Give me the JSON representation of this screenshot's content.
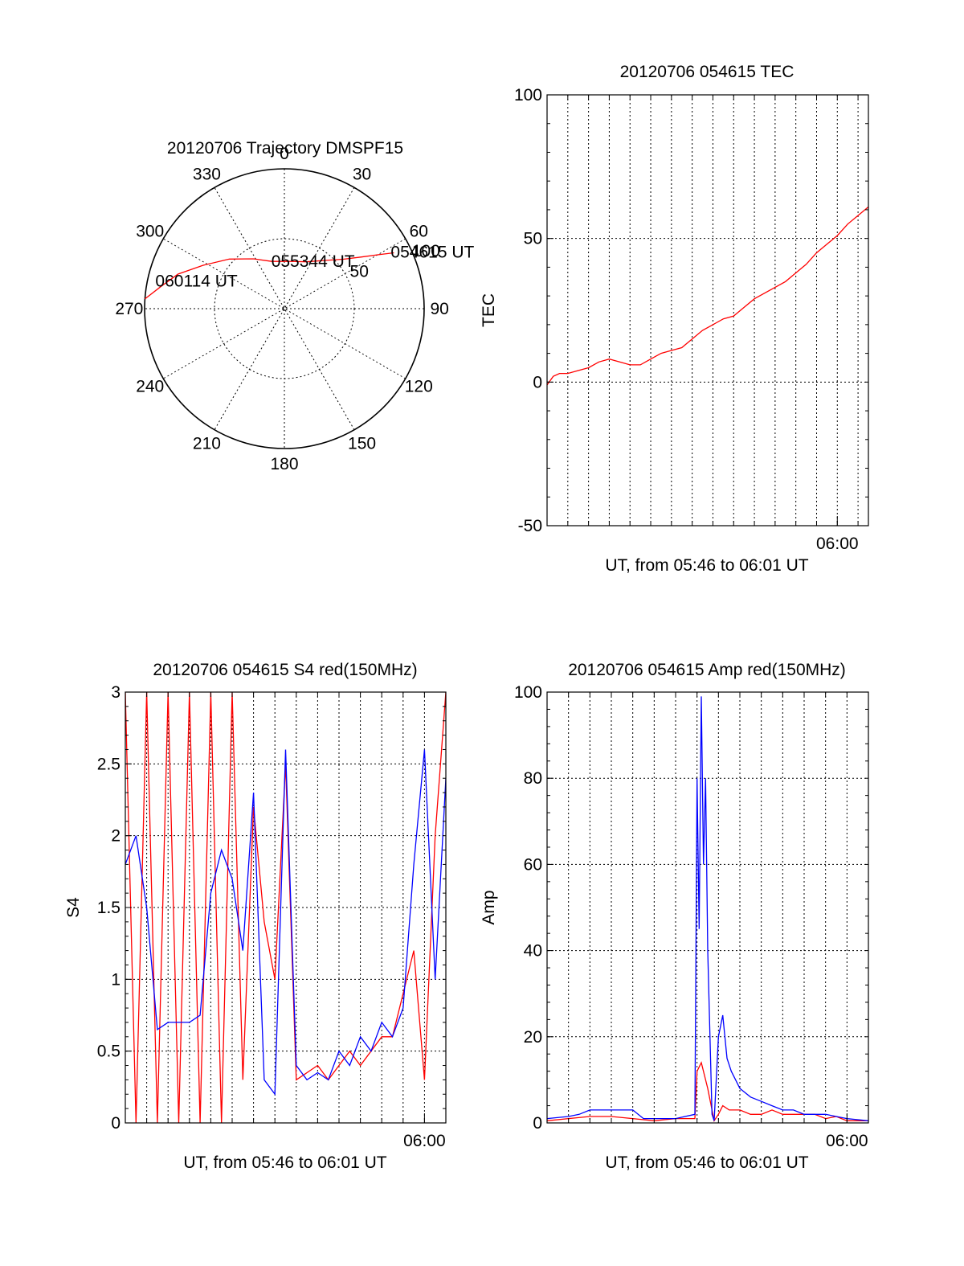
{
  "colors": {
    "red": "#ff0000",
    "blue": "#0000ff",
    "axis": "#000000",
    "grid": "#000000"
  },
  "chart_data": [
    {
      "id": "trajectory",
      "type": "polar",
      "title": "20120706 Trajectory DMSPF15",
      "azimuth_labels": [
        "0",
        "30",
        "60",
        "90",
        "120",
        "150",
        "180",
        "210",
        "240",
        "270",
        "300",
        "330"
      ],
      "radius_labels": [
        "50",
        "100"
      ],
      "rlim": [
        0,
        100
      ],
      "grid": true,
      "series": [
        {
          "color": "#ff0000",
          "points": [
            {
              "az": 63,
              "r": 88
            },
            {
              "az": 60,
              "r": 77
            },
            {
              "az": 56,
              "r": 66
            },
            {
              "az": 50,
              "r": 55
            },
            {
              "az": 40,
              "r": 45
            },
            {
              "az": 25,
              "r": 37
            },
            {
              "az": 5,
              "r": 34
            },
            {
              "az": -15,
              "r": 35
            },
            {
              "az": -32,
              "r": 42
            },
            {
              "az": -48,
              "r": 53
            },
            {
              "az": -62,
              "r": 66
            },
            {
              "az": -72,
              "r": 80
            },
            {
              "az": -80,
              "r": 90
            },
            {
              "az": -86,
              "r": 100
            }
          ]
        }
      ],
      "annotations": [
        {
          "text": "054615 UT",
          "az": 63,
          "r": 88
        },
        {
          "text": "055344 UT",
          "az": -12,
          "r": 34
        },
        {
          "text": "060114 UT",
          "az": -78,
          "r": 92
        }
      ]
    },
    {
      "id": "tec",
      "type": "line",
      "title": "20120706 054615 TEC",
      "xlabel": "UT, from 05:46 to 06:01 UT",
      "ylabel": "TEC",
      "xlim": [
        0,
        15.5
      ],
      "ylim": [
        -50,
        100
      ],
      "y_ticks": [
        -50,
        0,
        50,
        100
      ],
      "x_ticks": [
        {
          "x": 14,
          "label": "06:00"
        }
      ],
      "grid": true,
      "series": [
        {
          "color": "#ff0000",
          "x": [
            0,
            0.3,
            0.6,
            1.0,
            1.5,
            2.0,
            2.5,
            3.0,
            3.5,
            4.0,
            4.5,
            5.0,
            5.5,
            6.0,
            6.5,
            7.0,
            7.5,
            8.0,
            8.5,
            9.0,
            9.5,
            10.0,
            10.5,
            11.0,
            11.5,
            12.0,
            12.5,
            13.0,
            13.5,
            14.0,
            14.5,
            15.0,
            15.5
          ],
          "y": [
            -1,
            2,
            3,
            3,
            4,
            5,
            7,
            8,
            7,
            6,
            6,
            8,
            10,
            11,
            12,
            15,
            18,
            20,
            22,
            23,
            26,
            29,
            31,
            33,
            35,
            38,
            41,
            45,
            48,
            51,
            55,
            58,
            61
          ]
        }
      ]
    },
    {
      "id": "s4",
      "type": "line",
      "title": "20120706 054615 S4 red(150MHz)",
      "xlabel": "UT, from 05:46 to 06:01 UT",
      "ylabel": "S4",
      "xlim": [
        0,
        15
      ],
      "ylim": [
        0,
        3
      ],
      "y_ticks": [
        0,
        0.5,
        1,
        1.5,
        2,
        2.5,
        3
      ],
      "y_tick_labels": [
        "0",
        "0.5",
        "1",
        "1.5",
        "2",
        "2.5",
        "3"
      ],
      "x_ticks": [
        {
          "x": 14,
          "label": "06:00"
        }
      ],
      "grid": true,
      "series": [
        {
          "color": "#ff0000",
          "x": [
            0,
            0.5,
            1.0,
            1.5,
            2.0,
            2.5,
            3.0,
            3.5,
            4.0,
            4.5,
            5.0,
            5.5,
            6.0,
            6.5,
            7.0,
            7.5,
            8.0,
            8.5,
            9.0,
            9.5,
            10.0,
            10.5,
            11.0,
            11.5,
            12.0,
            12.5,
            13.0,
            13.5,
            14.0,
            14.5,
            15.0
          ],
          "y": [
            3,
            0,
            3,
            0,
            3,
            0,
            3,
            0,
            3,
            0,
            3,
            0.3,
            2.2,
            1.4,
            1.0,
            2.5,
            0.3,
            0.35,
            0.4,
            0.3,
            0.4,
            0.5,
            0.4,
            0.5,
            0.6,
            0.6,
            0.9,
            1.2,
            0.3,
            2.0,
            3
          ]
        },
        {
          "color": "#0000ff",
          "x": [
            0,
            0.5,
            1.0,
            1.5,
            2.0,
            2.5,
            3.0,
            3.5,
            4.0,
            4.5,
            5.0,
            5.5,
            6.0,
            6.5,
            7.0,
            7.5,
            8.0,
            8.5,
            9.0,
            9.5,
            10.0,
            10.5,
            11.0,
            11.5,
            12.0,
            12.5,
            13.0,
            13.5,
            14.0,
            14.5,
            15.0
          ],
          "y": [
            1.8,
            2.0,
            1.5,
            0.65,
            0.7,
            0.7,
            0.7,
            0.75,
            1.6,
            1.9,
            1.7,
            1.2,
            2.3,
            0.3,
            0.2,
            2.6,
            0.4,
            0.3,
            0.35,
            0.3,
            0.5,
            0.4,
            0.6,
            0.5,
            0.7,
            0.6,
            0.8,
            1.8,
            2.6,
            1.0,
            2.4
          ]
        }
      ]
    },
    {
      "id": "amp",
      "type": "line",
      "title": "20120706 054615 Amp red(150MHz)",
      "xlabel": "UT, from 05:46 to 06:01 UT",
      "ylabel": "Amp",
      "xlim": [
        0,
        15
      ],
      "ylim": [
        0,
        100
      ],
      "y_ticks": [
        0,
        20,
        40,
        60,
        80,
        100
      ],
      "x_ticks": [
        {
          "x": 14,
          "label": "06:00"
        }
      ],
      "grid": true,
      "series": [
        {
          "color": "#ff0000",
          "x": [
            0,
            1,
            2,
            3,
            4,
            5,
            6,
            6.9,
            7.0,
            7.2,
            7.5,
            7.8,
            8.0,
            8.2,
            8.5,
            9.0,
            9.5,
            10.0,
            10.5,
            11.0,
            11.5,
            12.0,
            12.5,
            13.0,
            13.5,
            14.0,
            15.0
          ],
          "y": [
            0.5,
            1,
            1.5,
            1.5,
            1,
            0.5,
            1,
            1,
            12,
            14,
            8,
            0.5,
            2,
            4,
            3,
            3,
            2,
            2,
            3,
            2,
            2,
            2,
            2,
            1,
            1.5,
            0.5,
            0.5
          ]
        },
        {
          "color": "#0000ff",
          "x": [
            0,
            1,
            1.5,
            2,
            3,
            4,
            4.5,
            5,
            6,
            6.9,
            7.0,
            7.1,
            7.2,
            7.3,
            7.4,
            7.5,
            7.7,
            7.8,
            8.0,
            8.2,
            8.4,
            8.6,
            8.8,
            9.0,
            9.5,
            10.0,
            10.5,
            11.0,
            11.5,
            12.0,
            12.5,
            13.0,
            13.5,
            14.0,
            15.0
          ],
          "y": [
            1,
            1.5,
            2,
            3,
            3,
            3,
            1,
            1,
            1,
            2,
            80,
            45,
            99,
            60,
            80,
            40,
            2,
            0.5,
            20,
            25,
            15,
            12,
            10,
            8,
            6,
            5,
            4,
            3,
            3,
            2,
            2,
            2,
            1.5,
            1,
            0.5
          ]
        }
      ]
    }
  ]
}
